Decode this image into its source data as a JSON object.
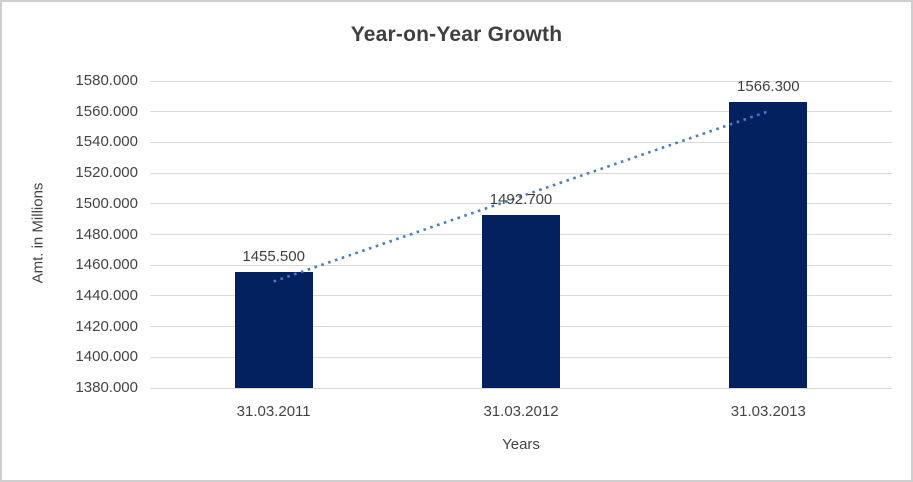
{
  "chart_data": {
    "type": "bar",
    "title": "Year-on-Year Growth",
    "xlabel": "Years",
    "ylabel": "Amt. in Millions",
    "categories": [
      "31.03.2011",
      "31.03.2012",
      "31.03.2013"
    ],
    "values": [
      1455.5,
      1492.7,
      1566.3
    ],
    "value_labels": [
      "1455.500",
      "1492.700",
      "1566.300"
    ],
    "ylim": [
      1380,
      1580
    ],
    "ytick_step": 20,
    "ytick_labels": [
      "1380.000",
      "1400.000",
      "1420.000",
      "1440.000",
      "1460.000",
      "1480.000",
      "1500.000",
      "1520.000",
      "1540.000",
      "1560.000",
      "1580.000"
    ],
    "grid": true,
    "legend": "none",
    "trendline": {
      "type": "linear",
      "style": "dotted"
    },
    "colors": {
      "bar": "#03215e",
      "trendline": "#4a7ebb",
      "gridline": "#d9d9d9",
      "axis_text": "#444444",
      "title_text": "#3f3f3f",
      "frame_border": "#d0cece",
      "background": "#ffffff"
    }
  }
}
